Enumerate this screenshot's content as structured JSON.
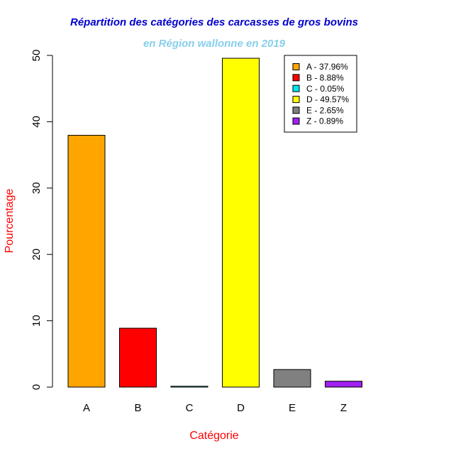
{
  "chart_data": {
    "type": "bar",
    "title": "Répartition des catégories des carcasses de gros bovins",
    "subtitle": "en Région wallonne en 2019",
    "xlabel": "Catégorie",
    "ylabel": "Pourcentage",
    "categories": [
      "A",
      "B",
      "C",
      "D",
      "E",
      "Z"
    ],
    "values": [
      37.96,
      8.88,
      0.05,
      49.57,
      2.65,
      0.89
    ],
    "colors": [
      "#FFA500",
      "#FF0000",
      "#00E5EE",
      "#FFFF00",
      "#808080",
      "#A020F0"
    ],
    "ylim": [
      0,
      50
    ],
    "yticks": [
      0,
      10,
      20,
      30,
      40,
      50
    ],
    "legend": {
      "position": "top-right",
      "entries": [
        "A - 37.96%",
        "B - 8.88%",
        "C - 0.05%",
        "D - 49.57%",
        "E - 2.65%",
        "Z - 0.89%"
      ]
    },
    "grid": false,
    "title_color": "#0000CD",
    "subtitle_color": "#87CEEB",
    "axis_label_color": "#FF0000"
  }
}
